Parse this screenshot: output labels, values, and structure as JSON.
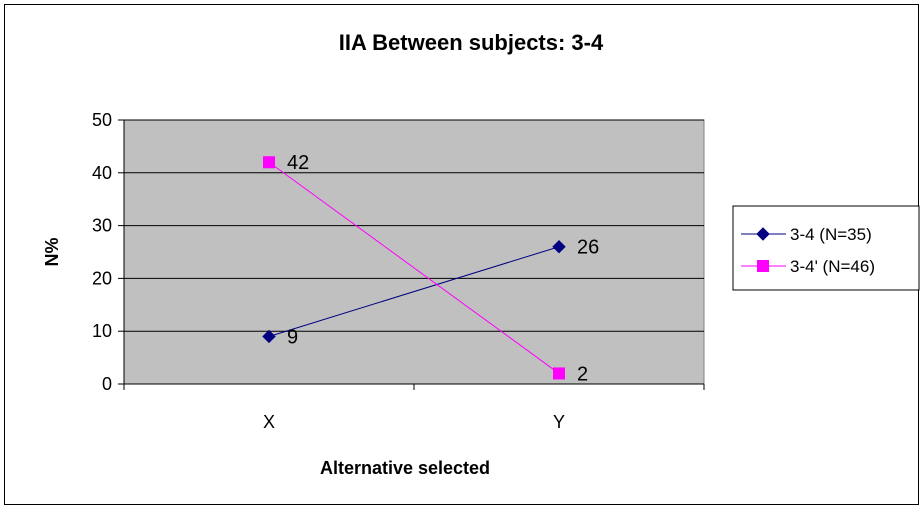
{
  "chart_data": {
    "type": "line",
    "title": "IIA Between subjects: 3-4",
    "xlabel": "Alternative selected",
    "ylabel": "N%",
    "categories": [
      "X",
      "Y"
    ],
    "ylim": [
      0,
      50
    ],
    "yticks": [
      0,
      10,
      20,
      30,
      40,
      50
    ],
    "grid": true,
    "legend_position": "right",
    "plot_background": "#c0c0c0",
    "series": [
      {
        "name": "3-4 (N=35)",
        "values": [
          9,
          26
        ],
        "color": "#000080",
        "marker": "diamond"
      },
      {
        "name": "3-4' (N=46)",
        "values": [
          42,
          2
        ],
        "color": "#ff00ff",
        "marker": "square"
      }
    ]
  }
}
